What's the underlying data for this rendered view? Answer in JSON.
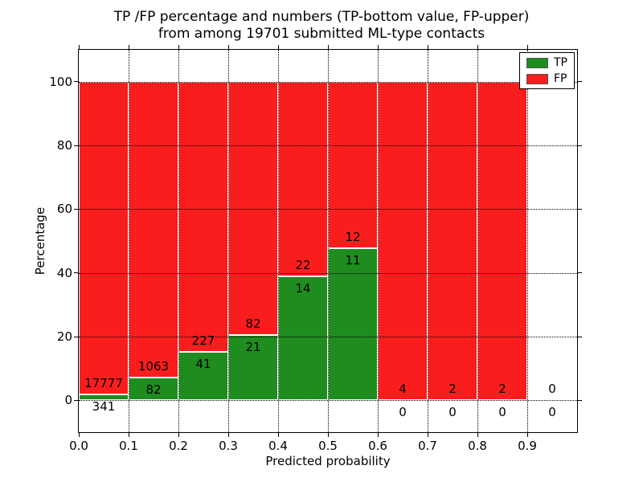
{
  "figure": {
    "title_line1": "TP /FP percentage and numbers (TP-bottom value, FP-upper)",
    "title_line2": "from among 19701 submitted ML-type contacts"
  },
  "chart_data": {
    "type": "bar",
    "stacked": true,
    "title": "TP /FP percentage and numbers (TP-bottom value, FP-upper)\nfrom among 19701 submitted ML-type contacts",
    "xlabel": "Predicted probability",
    "ylabel": "Percentage",
    "xlim": [
      0,
      1.0
    ],
    "ylim": [
      -10,
      110
    ],
    "bin_width": 0.1,
    "categories": [
      0.0,
      0.1,
      0.2,
      0.3,
      0.4,
      0.5,
      0.6,
      0.7,
      0.8,
      0.9
    ],
    "xtick_labels": [
      "0.0",
      "0.1",
      "0.2",
      "0.3",
      "0.4",
      "0.5",
      "0.6",
      "0.7",
      "0.8",
      "0.9"
    ],
    "yticks": [
      0,
      20,
      40,
      60,
      80,
      100
    ],
    "ytick_labels": [
      "0",
      "20",
      "40",
      "60",
      "80",
      "100"
    ],
    "grid": "dotted",
    "total_contacts": 19701,
    "series": [
      {
        "name": "TP",
        "color": "#1e8c1e",
        "counts": [
          341,
          82,
          41,
          21,
          14,
          11,
          0,
          0,
          0,
          0
        ]
      },
      {
        "name": "FP",
        "color": "#fa1d1d",
        "counts": [
          17777,
          1063,
          227,
          82,
          22,
          12,
          4,
          2,
          2,
          0
        ]
      }
    ],
    "tp_percent": [
      1.88,
      7.16,
      15.3,
      20.39,
      38.89,
      47.83,
      0,
      0,
      0,
      null
    ],
    "bar_edge_color": "#ffffff",
    "legend": {
      "position": "upper right",
      "entries": [
        {
          "label": "TP",
          "color": "#1e8c1e"
        },
        {
          "label": "FP",
          "color": "#fa1d1d"
        }
      ]
    }
  }
}
